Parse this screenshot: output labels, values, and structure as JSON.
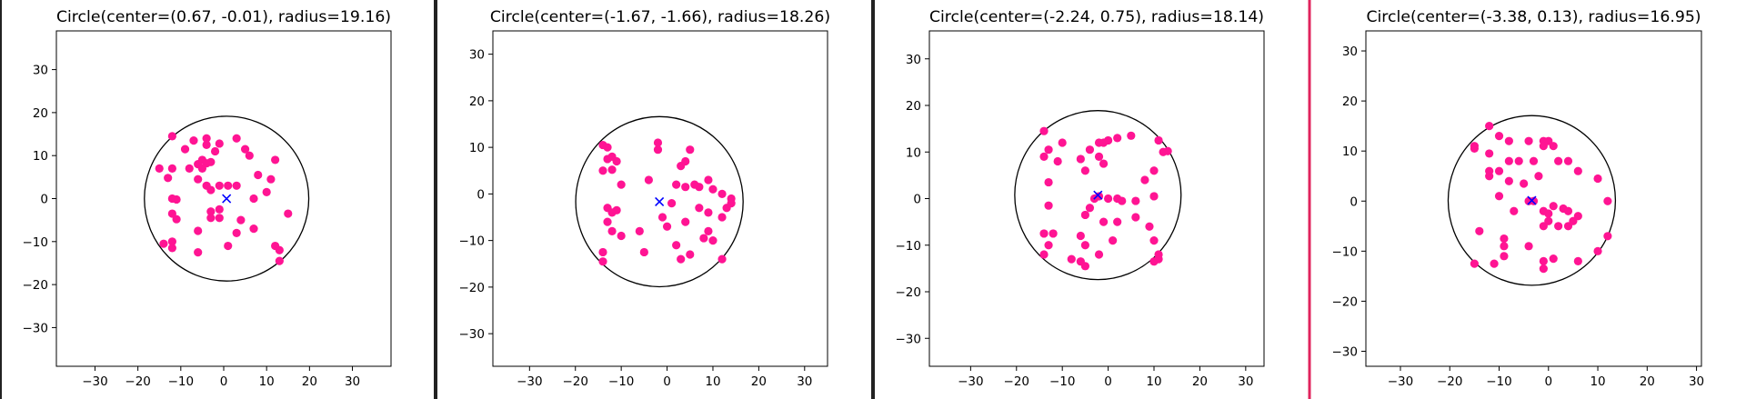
{
  "colors": {
    "point": "#ff1493",
    "center_marker": "#0000ff",
    "circle": "#000000",
    "panel_separator": "#222222",
    "accent_separator": "#e0245e"
  },
  "chart_data": [
    {
      "type": "scatter",
      "title": "Circle(center=(0.67, -0.01), radius=19.16)",
      "circle": {
        "center": [
          0.67,
          -0.01
        ],
        "radius": 19.16
      },
      "xlim": [
        -39,
        39
      ],
      "ylim": [
        -39,
        39
      ],
      "xticks": [
        -30,
        -20,
        -10,
        0,
        10,
        20,
        30
      ],
      "yticks": [
        -30,
        -20,
        -10,
        0,
        10,
        20,
        30
      ],
      "points": [
        [
          -12,
          14.5
        ],
        [
          -9,
          11.5
        ],
        [
          -7,
          13.5
        ],
        [
          -4,
          14
        ],
        [
          -4,
          12.5
        ],
        [
          -1,
          12.8
        ],
        [
          3,
          14
        ],
        [
          5,
          11.5
        ],
        [
          6,
          10
        ],
        [
          -2,
          11
        ],
        [
          -5,
          9
        ],
        [
          -6,
          8
        ],
        [
          -3,
          8.5
        ],
        [
          -4,
          8.2
        ],
        [
          -15,
          7
        ],
        [
          -12,
          7
        ],
        [
          -13,
          4.8
        ],
        [
          -8,
          7
        ],
        [
          -5,
          7
        ],
        [
          -6,
          4.5
        ],
        [
          -4,
          3
        ],
        [
          -3,
          2
        ],
        [
          -1,
          3
        ],
        [
          1,
          3
        ],
        [
          3,
          3
        ],
        [
          8,
          5.5
        ],
        [
          11,
          4.5
        ],
        [
          12,
          9
        ],
        [
          10,
          1.5
        ],
        [
          7,
          0
        ],
        [
          -12,
          0
        ],
        [
          -11,
          -0.2
        ],
        [
          -12,
          -3.5
        ],
        [
          -11,
          -4.8
        ],
        [
          -3,
          -3
        ],
        [
          -3,
          -4.5
        ],
        [
          -1,
          -2.5
        ],
        [
          -1,
          -4.5
        ],
        [
          4,
          -5
        ],
        [
          7,
          -7
        ],
        [
          3,
          -8
        ],
        [
          -6,
          -7.5
        ],
        [
          1,
          -11
        ],
        [
          -14,
          -10.5
        ],
        [
          -12,
          -11.5
        ],
        [
          -12,
          -10
        ],
        [
          -6,
          -12.5
        ],
        [
          12,
          -11
        ],
        [
          13,
          -12
        ],
        [
          13,
          -14.5
        ],
        [
          15,
          -3.5
        ]
      ]
    },
    {
      "type": "scatter",
      "title": "Circle(center=(-1.67, -1.66), radius=18.26)",
      "circle": {
        "center": [
          -1.67,
          -1.66
        ],
        "radius": 18.26
      },
      "xlim": [
        -38,
        35
      ],
      "ylim": [
        -37,
        35
      ],
      "xticks": [
        -30,
        -20,
        -10,
        0,
        10,
        20,
        30
      ],
      "yticks": [
        -30,
        -20,
        -10,
        0,
        10,
        20,
        30
      ],
      "points": [
        [
          -14,
          10.5
        ],
        [
          -13,
          10
        ],
        [
          -12,
          8
        ],
        [
          -13,
          7.5
        ],
        [
          -11,
          7
        ],
        [
          -14,
          5
        ],
        [
          -12,
          5.2
        ],
        [
          -10,
          2
        ],
        [
          -4,
          3
        ],
        [
          -2,
          11
        ],
        [
          -2,
          9.5
        ],
        [
          5,
          9.5
        ],
        [
          4,
          7
        ],
        [
          3,
          6
        ],
        [
          2,
          2
        ],
        [
          4,
          1.5
        ],
        [
          6,
          2
        ],
        [
          7,
          1.5
        ],
        [
          9,
          3
        ],
        [
          10,
          1
        ],
        [
          12,
          0
        ],
        [
          14,
          -1
        ],
        [
          -13,
          -3
        ],
        [
          -12,
          -4
        ],
        [
          -11,
          -3.5
        ],
        [
          -13,
          -6
        ],
        [
          -12,
          -8
        ],
        [
          -10,
          -9
        ],
        [
          -6,
          -8
        ],
        [
          -1,
          -5
        ],
        [
          0,
          -7
        ],
        [
          1,
          -2
        ],
        [
          4,
          -6
        ],
        [
          7,
          -3
        ],
        [
          9,
          -4
        ],
        [
          9,
          -8
        ],
        [
          10,
          -10
        ],
        [
          8,
          -9.5
        ],
        [
          12,
          -5
        ],
        [
          13,
          -3
        ],
        [
          14,
          -2
        ],
        [
          -14,
          -12.5
        ],
        [
          -14,
          -14.5
        ],
        [
          -5,
          -12.5
        ],
        [
          2,
          -11
        ],
        [
          3,
          -14
        ],
        [
          5,
          -13
        ],
        [
          12,
          -14
        ]
      ]
    },
    {
      "type": "scatter",
      "title": "Circle(center=(-2.24, 0.75), radius=18.14)",
      "circle": {
        "center": [
          -2.24,
          0.75
        ],
        "radius": 18.14
      },
      "xlim": [
        -39,
        34
      ],
      "ylim": [
        -36,
        36
      ],
      "xticks": [
        -30,
        -20,
        -10,
        0,
        10,
        20,
        30
      ],
      "yticks": [
        -30,
        -20,
        -10,
        0,
        10,
        20,
        30
      ],
      "points": [
        [
          -14,
          14.5
        ],
        [
          -10,
          12
        ],
        [
          -13,
          10.5
        ],
        [
          -11,
          8
        ],
        [
          -6,
          8.5
        ],
        [
          -4,
          10.5
        ],
        [
          -2,
          12
        ],
        [
          -1,
          12
        ],
        [
          0,
          12.5
        ],
        [
          2,
          13
        ],
        [
          5,
          13.5
        ],
        [
          -2,
          9
        ],
        [
          -1,
          7.5
        ],
        [
          -5,
          6
        ],
        [
          -13,
          3.5
        ],
        [
          -14,
          9
        ],
        [
          -13,
          -1.5
        ],
        [
          -3,
          0
        ],
        [
          -2,
          0.5
        ],
        [
          0,
          0
        ],
        [
          2,
          0
        ],
        [
          3,
          -0.5
        ],
        [
          6,
          -0.5
        ],
        [
          8,
          4
        ],
        [
          10,
          6
        ],
        [
          11,
          12.5
        ],
        [
          12,
          10
        ],
        [
          13,
          10.2
        ],
        [
          10,
          0.5
        ],
        [
          -5,
          -3.5
        ],
        [
          -4,
          -2
        ],
        [
          -1,
          -5
        ],
        [
          2,
          -5
        ],
        [
          6,
          -4
        ],
        [
          9,
          -6
        ],
        [
          10,
          -9
        ],
        [
          11,
          -12
        ],
        [
          -14,
          -7.5
        ],
        [
          -12,
          -7.5
        ],
        [
          -13,
          -10
        ],
        [
          -14,
          -12
        ],
        [
          -6,
          -8
        ],
        [
          -5,
          -10
        ],
        [
          -8,
          -13
        ],
        [
          -6,
          -13.5
        ],
        [
          -5,
          -14.5
        ],
        [
          -2,
          -12
        ],
        [
          1,
          -9
        ],
        [
          10,
          -13.5
        ],
        [
          11,
          -13
        ]
      ]
    },
    {
      "type": "scatter",
      "title": "Circle(center=(-3.38, 0.13), radius=16.95)",
      "circle": {
        "center": [
          -3.38,
          0.13
        ],
        "radius": 16.95
      },
      "xlim": [
        -37,
        31
      ],
      "ylim": [
        -33,
        34
      ],
      "xticks": [
        -30,
        -20,
        -10,
        0,
        10,
        20,
        30
      ],
      "yticks": [
        -30,
        -20,
        -10,
        0,
        10,
        20,
        30
      ],
      "points": [
        [
          -12,
          15
        ],
        [
          -10,
          13
        ],
        [
          -15,
          11
        ],
        [
          -15,
          10.5
        ],
        [
          -8,
          12
        ],
        [
          -4,
          12
        ],
        [
          -1,
          12
        ],
        [
          -12,
          9.5
        ],
        [
          -8,
          8
        ],
        [
          -6,
          8
        ],
        [
          -3,
          8
        ],
        [
          -1,
          11
        ],
        [
          0,
          12
        ],
        [
          1,
          11
        ],
        [
          2,
          8
        ],
        [
          4,
          8
        ],
        [
          6,
          6
        ],
        [
          10,
          4.5
        ],
        [
          -12,
          6
        ],
        [
          -10,
          6
        ],
        [
          -12,
          5
        ],
        [
          -8,
          4
        ],
        [
          -5,
          3.5
        ],
        [
          -2,
          5
        ],
        [
          -10,
          1
        ],
        [
          -7,
          -2
        ],
        [
          -4,
          0
        ],
        [
          -3,
          0
        ],
        [
          -1,
          -2
        ],
        [
          0,
          -2.5
        ],
        [
          1,
          -1
        ],
        [
          3,
          -1.5
        ],
        [
          4,
          -2
        ],
        [
          6,
          -3
        ],
        [
          12,
          0
        ],
        [
          -14,
          -6
        ],
        [
          -4,
          -9
        ],
        [
          -1,
          -5
        ],
        [
          0,
          -4
        ],
        [
          2,
          -5
        ],
        [
          4,
          -5
        ],
        [
          5,
          -4
        ],
        [
          10,
          -10
        ],
        [
          12,
          -7
        ],
        [
          -9,
          -7.5
        ],
        [
          -9,
          -9
        ],
        [
          -9,
          -11
        ],
        [
          -15,
          -12.5
        ],
        [
          -11,
          -12.5
        ],
        [
          -1,
          -12
        ],
        [
          -1,
          -13.5
        ],
        [
          1,
          -11.5
        ],
        [
          6,
          -12
        ]
      ]
    }
  ]
}
